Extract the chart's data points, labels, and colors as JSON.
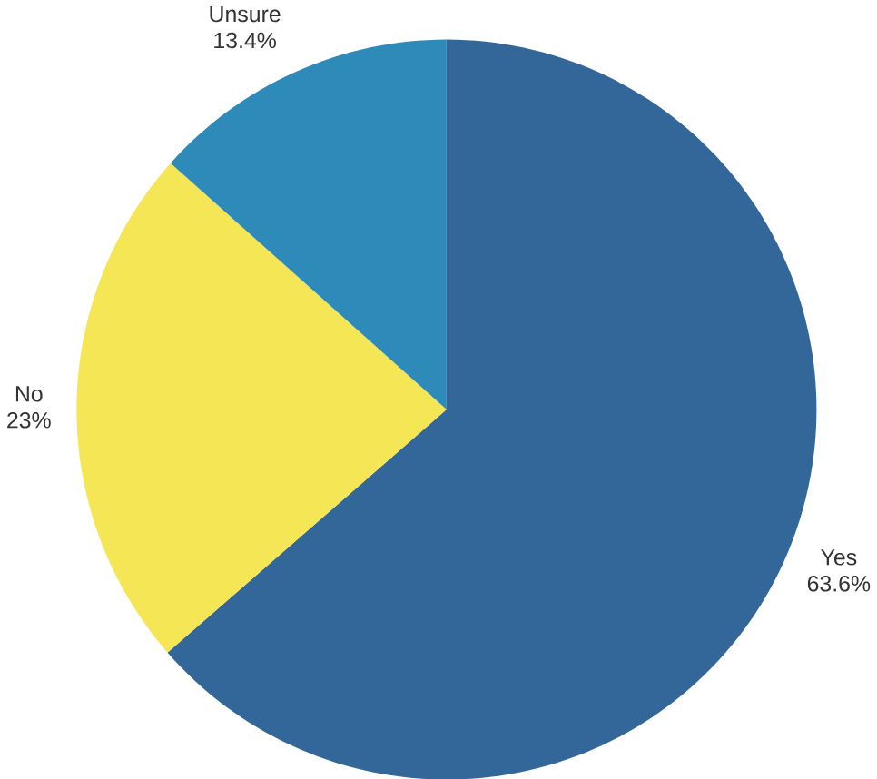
{
  "chart_data": {
    "type": "pie",
    "categories": [
      "Yes",
      "No",
      "Unsure"
    ],
    "values": [
      63.6,
      23,
      13.4
    ],
    "colors": [
      "#346799",
      "#f5e656",
      "#2e8bb9"
    ],
    "value_labels": [
      "63.6%",
      "23%",
      "13.4%"
    ]
  }
}
